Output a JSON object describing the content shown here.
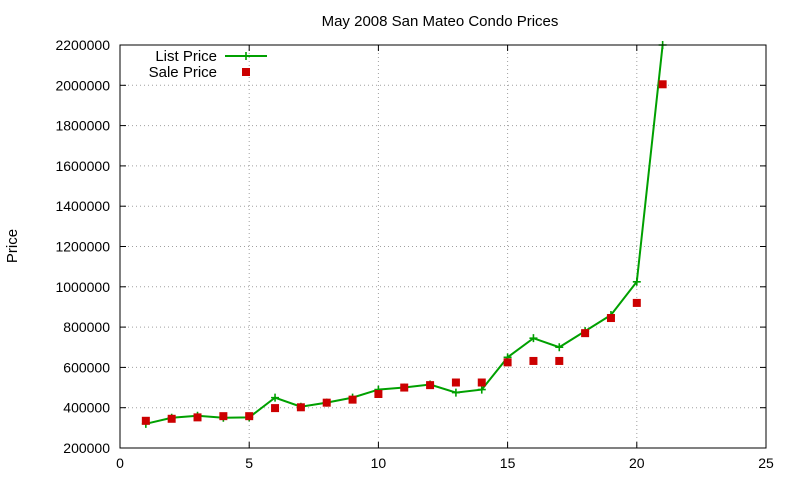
{
  "chart_data": {
    "type": "line",
    "title": "May 2008 San Mateo Condo Prices",
    "xlabel": "",
    "ylabel": "Price",
    "xlim": [
      0,
      25
    ],
    "ylim": [
      200000,
      2200000
    ],
    "xticks": [
      "0",
      "5",
      "10",
      "15",
      "20",
      "25"
    ],
    "yticks": [
      "200000",
      "400000",
      "600000",
      "800000",
      "1000000",
      "1200000",
      "1400000",
      "1600000",
      "1800000",
      "2000000",
      "2200000"
    ],
    "grid": true,
    "legend_position": "top-left",
    "x": [
      1,
      2,
      3,
      4,
      5,
      6,
      7,
      8,
      9,
      10,
      11,
      12,
      13,
      14,
      15,
      16,
      17,
      18,
      19,
      20,
      21
    ],
    "series": [
      {
        "name": "List Price",
        "style": "line-with-plus-markers",
        "color": "#00a000",
        "values": [
          320000,
          350000,
          360000,
          350000,
          352000,
          450000,
          405000,
          425000,
          450000,
          490000,
          500000,
          515000,
          475000,
          490000,
          650000,
          745000,
          700000,
          780000,
          860000,
          1025000,
          2200000
        ]
      },
      {
        "name": "Sale Price",
        "style": "square-markers",
        "color": "#cc0000",
        "values": [
          335000,
          345000,
          352000,
          358000,
          358000,
          398000,
          402000,
          425000,
          440000,
          468000,
          500000,
          512000,
          525000,
          525000,
          625000,
          632000,
          632000,
          770000,
          845000,
          920000,
          2005000
        ]
      }
    ]
  }
}
